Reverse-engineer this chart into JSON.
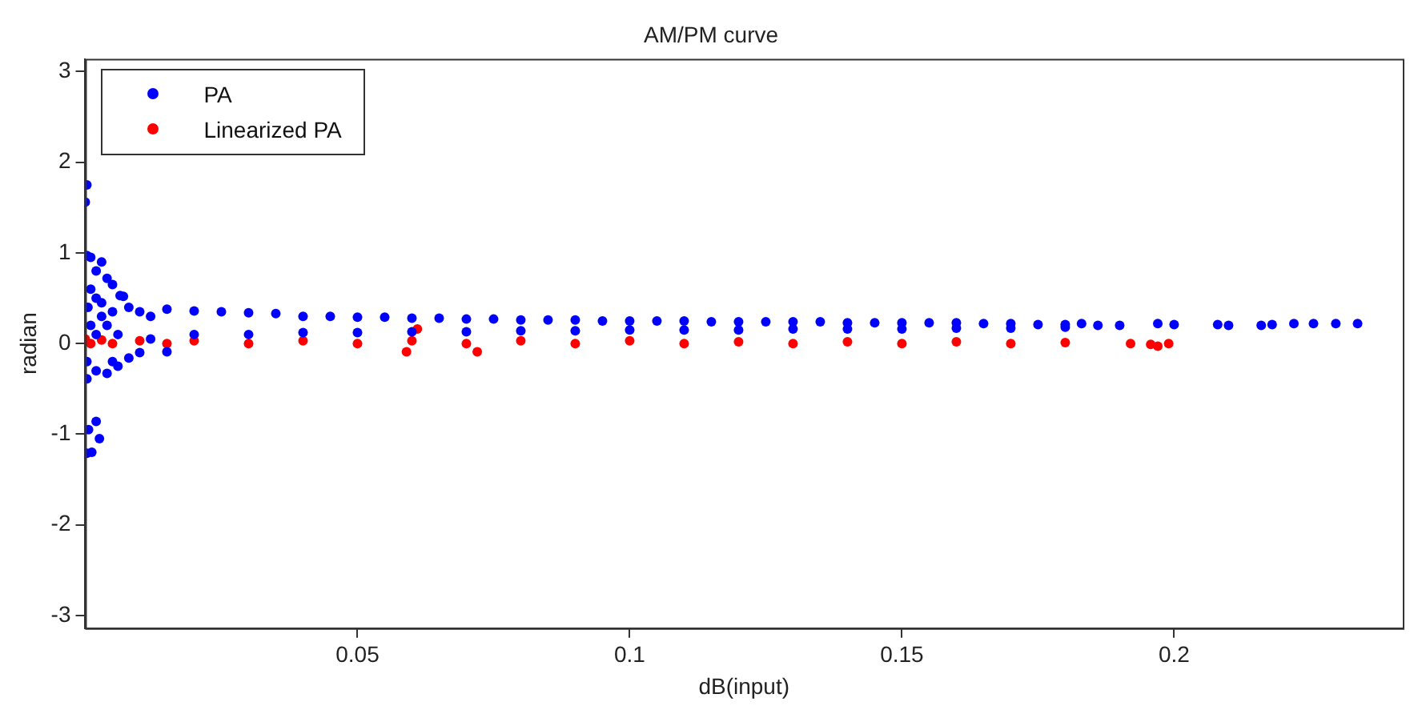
{
  "chart_data": {
    "type": "scatter",
    "title": "AM/PM curve",
    "xlabel": "dB(input)",
    "ylabel": "radian",
    "xlim": [
      0,
      0.242
    ],
    "xticks": [
      0.05,
      0.1,
      0.15,
      0.2
    ],
    "ylim": [
      -3.14,
      3.14
    ],
    "yticks": [
      -3,
      -2,
      -1,
      0,
      1,
      2,
      3
    ],
    "grid": false,
    "legend": "top left",
    "marker": "circle",
    "series": [
      {
        "name": "PA",
        "color": "#0000ff",
        "x": [
          0.0,
          0.0003,
          0.0003,
          0.001,
          0.003,
          0.002,
          0.004,
          0.005,
          0.0064,
          0.007,
          0.001,
          0.0005,
          0.002,
          0.003,
          0.001,
          0.002,
          0.003,
          0.004,
          0.005,
          0.006,
          0.0003,
          0.0003,
          0.004,
          0.002,
          0.005,
          0.006,
          0.008,
          0.01,
          0.015,
          0.002,
          0.0006,
          0.0026,
          0.0003,
          0.0012,
          0.008,
          0.01,
          0.012,
          0.012,
          0.015,
          0.02,
          0.02,
          0.025,
          0.03,
          0.03,
          0.035,
          0.04,
          0.04,
          0.045,
          0.05,
          0.05,
          0.055,
          0.06,
          0.06,
          0.065,
          0.07,
          0.07,
          0.075,
          0.08,
          0.08,
          0.085,
          0.09,
          0.09,
          0.095,
          0.1,
          0.1,
          0.105,
          0.11,
          0.11,
          0.115,
          0.12,
          0.12,
          0.125,
          0.13,
          0.13,
          0.135,
          0.14,
          0.14,
          0.145,
          0.15,
          0.15,
          0.155,
          0.16,
          0.16,
          0.165,
          0.17,
          0.17,
          0.175,
          0.18,
          0.18,
          0.183,
          0.186,
          0.19,
          0.197,
          0.2,
          0.208,
          0.21,
          0.216,
          0.218,
          0.222,
          0.2256,
          0.2297,
          0.2337
        ],
        "values": [
          1.56,
          1.75,
          0.97,
          0.95,
          0.9,
          0.8,
          0.72,
          0.65,
          0.53,
          0.52,
          0.6,
          0.4,
          0.5,
          0.45,
          0.2,
          0.1,
          0.3,
          0.2,
          0.35,
          0.1,
          -0.2,
          -0.39,
          -0.33,
          -0.3,
          -0.2,
          -0.25,
          -0.16,
          -0.1,
          -0.09,
          -0.86,
          -0.95,
          -1.05,
          -1.21,
          -1.2,
          0.4,
          0.35,
          0.3,
          0.05,
          0.38,
          0.36,
          0.1,
          0.35,
          0.34,
          0.1,
          0.33,
          0.3,
          0.12,
          0.3,
          0.29,
          0.12,
          0.29,
          0.28,
          0.13,
          0.28,
          0.27,
          0.13,
          0.27,
          0.26,
          0.14,
          0.26,
          0.26,
          0.14,
          0.25,
          0.25,
          0.15,
          0.25,
          0.25,
          0.15,
          0.24,
          0.24,
          0.15,
          0.24,
          0.24,
          0.16,
          0.24,
          0.23,
          0.16,
          0.23,
          0.23,
          0.16,
          0.23,
          0.23,
          0.17,
          0.22,
          0.22,
          0.17,
          0.21,
          0.21,
          0.18,
          0.22,
          0.2,
          0.2,
          0.22,
          0.21,
          0.21,
          0.2,
          0.2,
          0.21,
          0.22,
          0.22,
          0.22,
          0.22
        ]
      },
      {
        "name": "Linearized PA",
        "color": "#ff0000",
        "x": [
          0.0,
          0.001,
          0.003,
          0.005,
          0.01,
          0.015,
          0.02,
          0.03,
          0.04,
          0.05,
          0.059,
          0.061,
          0.06,
          0.07,
          0.072,
          0.08,
          0.09,
          0.1,
          0.11,
          0.12,
          0.13,
          0.14,
          0.15,
          0.16,
          0.17,
          0.18,
          0.192,
          0.1957,
          0.197,
          0.199
        ],
        "values": [
          0.05,
          0.0,
          0.04,
          0.0,
          0.03,
          0.0,
          0.03,
          0.0,
          0.03,
          0.0,
          -0.09,
          0.16,
          0.03,
          0.0,
          -0.09,
          0.03,
          0.0,
          0.03,
          0.0,
          0.02,
          0.0,
          0.02,
          0.0,
          0.02,
          0.0,
          0.01,
          0.0,
          -0.01,
          -0.03,
          0.0
        ]
      }
    ]
  }
}
